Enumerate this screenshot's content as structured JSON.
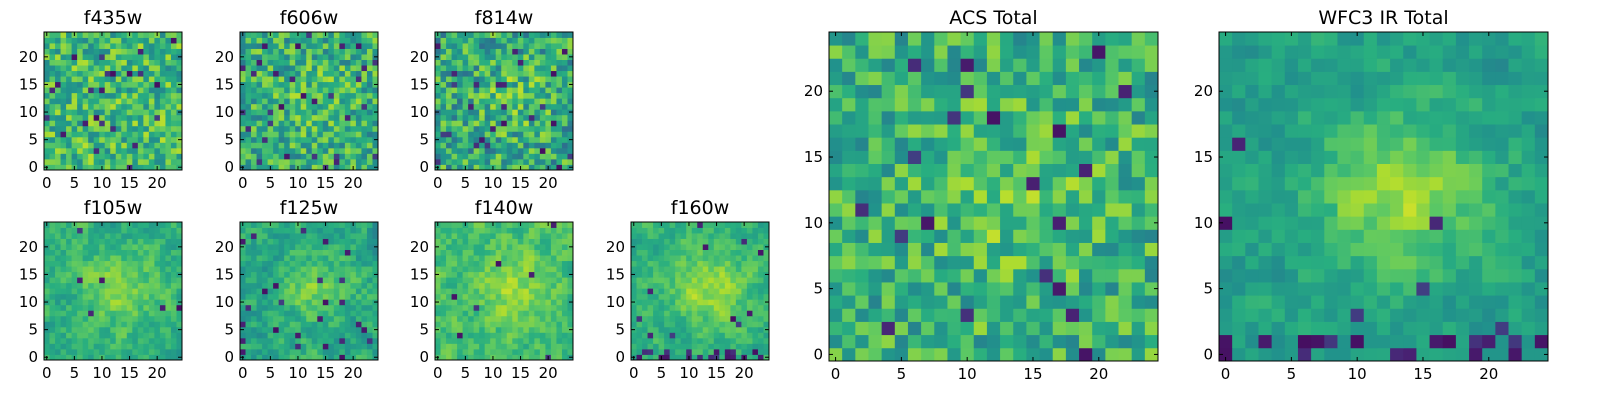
{
  "figure": {
    "panels": [
      {
        "title": "f435w"
      },
      {
        "title": "f606w"
      },
      {
        "title": "f814w"
      },
      {
        "title": "f105w"
      },
      {
        "title": "f125w"
      },
      {
        "title": "f140w"
      },
      {
        "title": "f160w"
      },
      {
        "title": "ACS Total"
      },
      {
        "title": "WFC3 IR Total"
      }
    ]
  },
  "chart_data": [
    {
      "type": "heatmap",
      "title": "f435w",
      "colormap": "viridis",
      "grid_size": [
        25,
        25
      ],
      "xlim": [
        0,
        24
      ],
      "ylim": [
        0,
        24
      ],
      "xticks": [
        0,
        5,
        10,
        15,
        20
      ],
      "yticks": [
        0,
        5,
        10,
        15,
        20
      ],
      "pattern": "uniform noise, few dark pixels"
    },
    {
      "type": "heatmap",
      "title": "f606w",
      "colormap": "viridis",
      "grid_size": [
        25,
        25
      ],
      "xlim": [
        0,
        24
      ],
      "ylim": [
        0,
        24
      ],
      "xticks": [
        0,
        5,
        10,
        15,
        20
      ],
      "yticks": [
        0,
        5,
        10,
        15,
        20
      ],
      "pattern": "noise with faint central bright region"
    },
    {
      "type": "heatmap",
      "title": "f814w",
      "colormap": "viridis",
      "grid_size": [
        25,
        25
      ],
      "xlim": [
        0,
        24
      ],
      "ylim": [
        0,
        24
      ],
      "xticks": [
        0,
        5,
        10,
        15,
        20
      ],
      "yticks": [
        0,
        5,
        10,
        15,
        20
      ],
      "pattern": "noise with faint central bright region"
    },
    {
      "type": "heatmap",
      "title": "f105w",
      "colormap": "viridis",
      "grid_size": [
        25,
        25
      ],
      "xlim": [
        0,
        24
      ],
      "ylim": [
        0,
        24
      ],
      "xticks": [
        0,
        5,
        10,
        15,
        20
      ],
      "yticks": [
        0,
        5,
        10,
        15,
        20
      ],
      "pattern": "smooth, bright central blob"
    },
    {
      "type": "heatmap",
      "title": "f125w",
      "colormap": "viridis",
      "grid_size": [
        25,
        25
      ],
      "xlim": [
        0,
        24
      ],
      "ylim": [
        0,
        24
      ],
      "xticks": [
        0,
        5,
        10,
        15,
        20
      ],
      "yticks": [
        0,
        5,
        10,
        15,
        20
      ],
      "pattern": "smooth, bright central blob"
    },
    {
      "type": "heatmap",
      "title": "f140w",
      "colormap": "viridis",
      "grid_size": [
        25,
        25
      ],
      "xlim": [
        0,
        24
      ],
      "ylim": [
        0,
        24
      ],
      "xticks": [
        0,
        5,
        10,
        15,
        20
      ],
      "yticks": [
        0,
        5,
        10,
        15,
        20
      ],
      "pattern": "smooth, bright central blob"
    },
    {
      "type": "heatmap",
      "title": "f160w",
      "colormap": "viridis",
      "grid_size": [
        25,
        25
      ],
      "xlim": [
        0,
        24
      ],
      "ylim": [
        0,
        24
      ],
      "xticks": [
        0,
        5,
        10,
        15,
        20
      ],
      "yticks": [
        0,
        5,
        10,
        15,
        20
      ],
      "pattern": "smooth, bright central blob, dark pixels at bottom edge"
    },
    {
      "type": "heatmap",
      "title": "ACS Total",
      "colormap": "viridis",
      "grid_size": [
        25,
        25
      ],
      "xlim": [
        0,
        24
      ],
      "ylim": [
        0,
        24
      ],
      "xticks": [
        0,
        5,
        10,
        15,
        20
      ],
      "yticks": [
        0,
        5,
        10,
        15,
        20
      ],
      "pattern": "noise with slightly brighter center"
    },
    {
      "type": "heatmap",
      "title": "WFC3 IR Total",
      "colormap": "viridis",
      "grid_size": [
        25,
        25
      ],
      "xlim": [
        0,
        24
      ],
      "ylim": [
        0,
        24
      ],
      "xticks": [
        0,
        5,
        10,
        15,
        20
      ],
      "yticks": [
        0,
        5,
        10,
        15,
        20
      ],
      "pattern": "smooth, bright central source near (14, 13), dark pixels at bottom"
    }
  ]
}
